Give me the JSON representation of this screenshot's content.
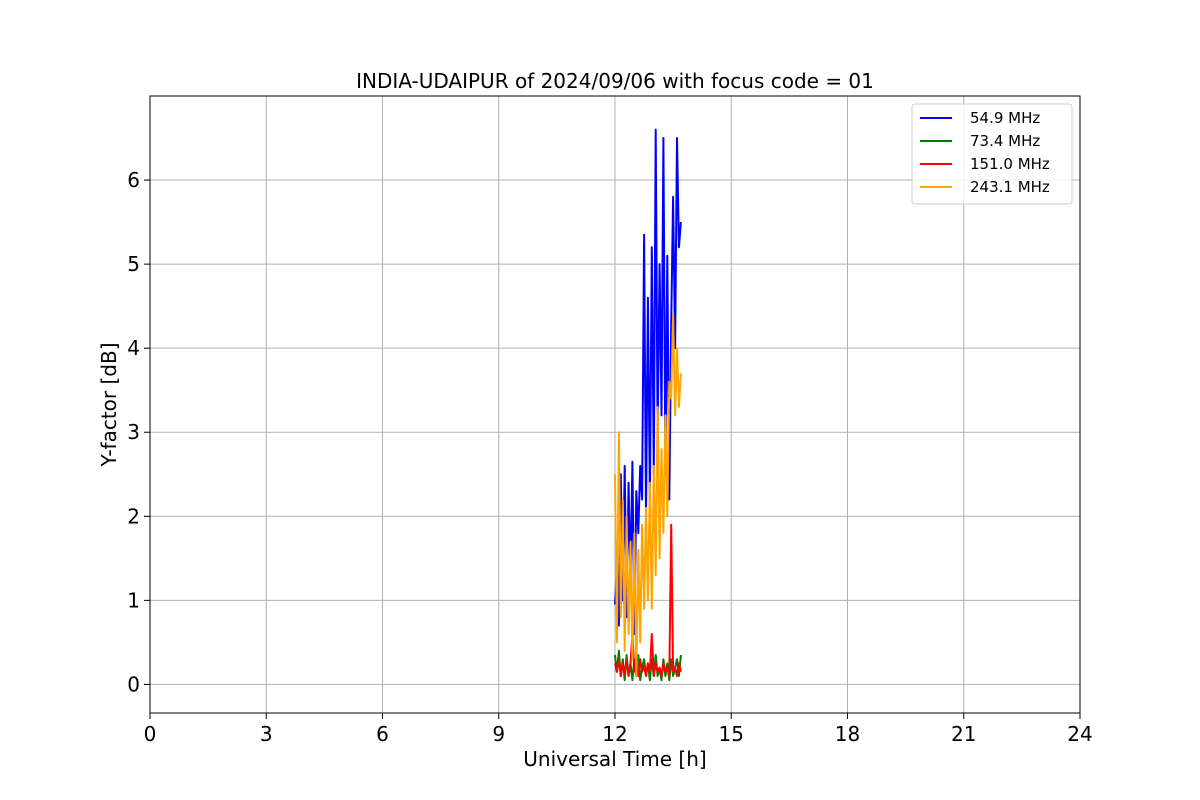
{
  "chart_data": {
    "type": "line",
    "title": "INDIA-UDAIPUR of 2024/09/06 with focus code = 01",
    "xlabel": "Universal Time [h]",
    "ylabel": "Y-factor [dB]",
    "xlim": [
      0,
      24
    ],
    "ylim": [
      -0.34,
      7.0
    ],
    "xticks": [
      0,
      3,
      6,
      9,
      12,
      15,
      18,
      21,
      24
    ],
    "yticks": [
      0,
      1,
      2,
      3,
      4,
      5,
      6
    ],
    "grid": true,
    "legend_position": "upper right",
    "series": [
      {
        "name": "54.9 MHz",
        "color": "#0000ff",
        "x": [
          12.0,
          12.05,
          12.1,
          12.15,
          12.2,
          12.25,
          12.3,
          12.35,
          12.4,
          12.45,
          12.5,
          12.55,
          12.6,
          12.65,
          12.7,
          12.75,
          12.8,
          12.85,
          12.9,
          12.95,
          13.0,
          13.05,
          13.1,
          13.15,
          13.2,
          13.25,
          13.3,
          13.35,
          13.4,
          13.45,
          13.5,
          13.55,
          13.6,
          13.65,
          13.7
        ],
        "y": [
          0.95,
          1.4,
          0.7,
          2.5,
          1.0,
          2.6,
          0.8,
          2.4,
          1.2,
          2.65,
          0.6,
          2.3,
          1.8,
          2.6,
          2.2,
          5.35,
          2.0,
          4.6,
          2.2,
          5.2,
          2.5,
          6.6,
          3.0,
          5.0,
          3.2,
          6.5,
          2.5,
          5.1,
          2.2,
          4.3,
          5.8,
          4.0,
          6.5,
          5.2,
          5.5
        ]
      },
      {
        "name": "73.4 MHz",
        "color": "#008000",
        "x": [
          12.0,
          12.05,
          12.1,
          12.15,
          12.2,
          12.25,
          12.3,
          12.35,
          12.4,
          12.45,
          12.5,
          12.55,
          12.6,
          12.65,
          12.7,
          12.75,
          12.8,
          12.85,
          12.9,
          12.95,
          13.0,
          13.05,
          13.1,
          13.15,
          13.2,
          13.25,
          13.3,
          13.35,
          13.4,
          13.45,
          13.5,
          13.55,
          13.6,
          13.65,
          13.7
        ],
        "y": [
          0.35,
          0.15,
          0.4,
          0.1,
          0.3,
          0.05,
          0.35,
          0.1,
          0.25,
          0.05,
          0.3,
          0.1,
          0.35,
          0.05,
          0.2,
          0.3,
          0.1,
          0.25,
          0.05,
          0.3,
          0.1,
          0.35,
          0.1,
          0.2,
          0.05,
          0.3,
          0.1,
          0.25,
          0.05,
          0.3,
          0.1,
          0.2,
          0.3,
          0.1,
          0.35
        ]
      },
      {
        "name": "151.0 MHz",
        "color": "#ff0000",
        "x": [
          12.0,
          12.05,
          12.1,
          12.15,
          12.2,
          12.25,
          12.3,
          12.35,
          12.4,
          12.45,
          12.5,
          12.55,
          12.6,
          12.65,
          12.7,
          12.75,
          12.8,
          12.85,
          12.9,
          12.95,
          13.0,
          13.05,
          13.1,
          13.15,
          13.2,
          13.25,
          13.3,
          13.35,
          13.4,
          13.45,
          13.5,
          13.55,
          13.6,
          13.65,
          13.7
        ],
        "y": [
          0.25,
          0.15,
          0.3,
          0.1,
          0.25,
          0.12,
          0.28,
          0.1,
          0.25,
          0.6,
          0.15,
          0.25,
          0.1,
          0.3,
          0.15,
          0.22,
          0.1,
          0.25,
          0.15,
          0.6,
          0.1,
          0.25,
          0.15,
          0.2,
          0.1,
          0.25,
          0.15,
          0.2,
          0.1,
          1.9,
          0.15,
          0.2,
          0.1,
          0.25,
          0.15
        ]
      },
      {
        "name": "243.1 MHz",
        "color": "#ffa500",
        "x": [
          12.0,
          12.05,
          12.1,
          12.15,
          12.2,
          12.25,
          12.3,
          12.35,
          12.4,
          12.45,
          12.5,
          12.55,
          12.6,
          12.65,
          12.7,
          12.75,
          12.8,
          12.85,
          12.9,
          12.95,
          13.0,
          13.05,
          13.1,
          13.15,
          13.2,
          13.25,
          13.3,
          13.35,
          13.4,
          13.45,
          13.5,
          13.55,
          13.6,
          13.65,
          13.7
        ],
        "y": [
          2.5,
          0.5,
          3.0,
          0.8,
          2.2,
          0.4,
          2.0,
          0.6,
          1.7,
          0.3,
          1.8,
          0.1,
          1.6,
          0.5,
          1.9,
          0.9,
          2.1,
          1.0,
          2.4,
          0.9,
          2.6,
          1.3,
          3.3,
          1.5,
          2.8,
          1.8,
          3.2,
          2.0,
          3.6,
          3.4,
          4.4,
          3.2,
          4.0,
          3.3,
          3.7
        ]
      }
    ]
  }
}
